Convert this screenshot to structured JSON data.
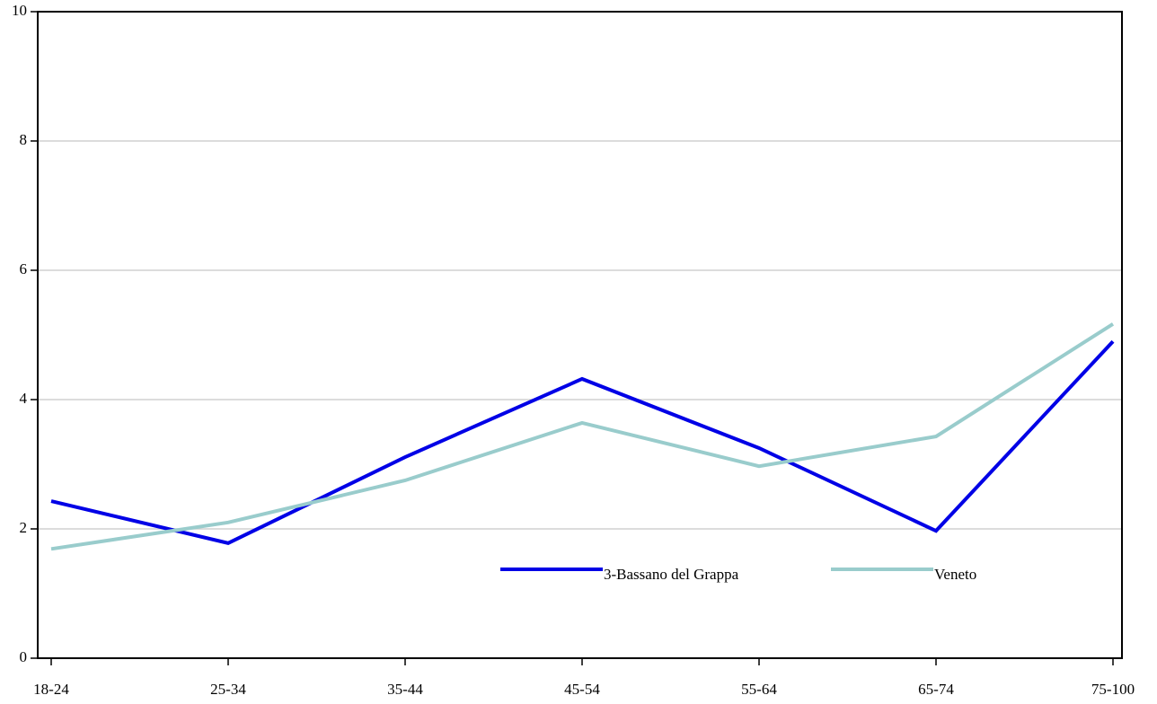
{
  "chart_data": {
    "type": "line",
    "categories": [
      "18-24",
      "25-34",
      "35-44",
      "45-54",
      "55-64",
      "65-74",
      "75-100"
    ],
    "series": [
      {
        "name": "3-Bassano del Grappa",
        "color": "#0000e6",
        "values": [
          2.43,
          1.78,
          3.11,
          4.32,
          3.25,
          1.97,
          4.9
        ]
      },
      {
        "name": "Veneto",
        "color": "#99cccc",
        "values": [
          1.69,
          2.1,
          2.75,
          3.64,
          2.97,
          3.43,
          5.17
        ]
      }
    ],
    "ylim": [
      0,
      10
    ],
    "yticks": [
      0,
      2,
      4,
      6,
      8,
      10
    ],
    "grid": true
  }
}
